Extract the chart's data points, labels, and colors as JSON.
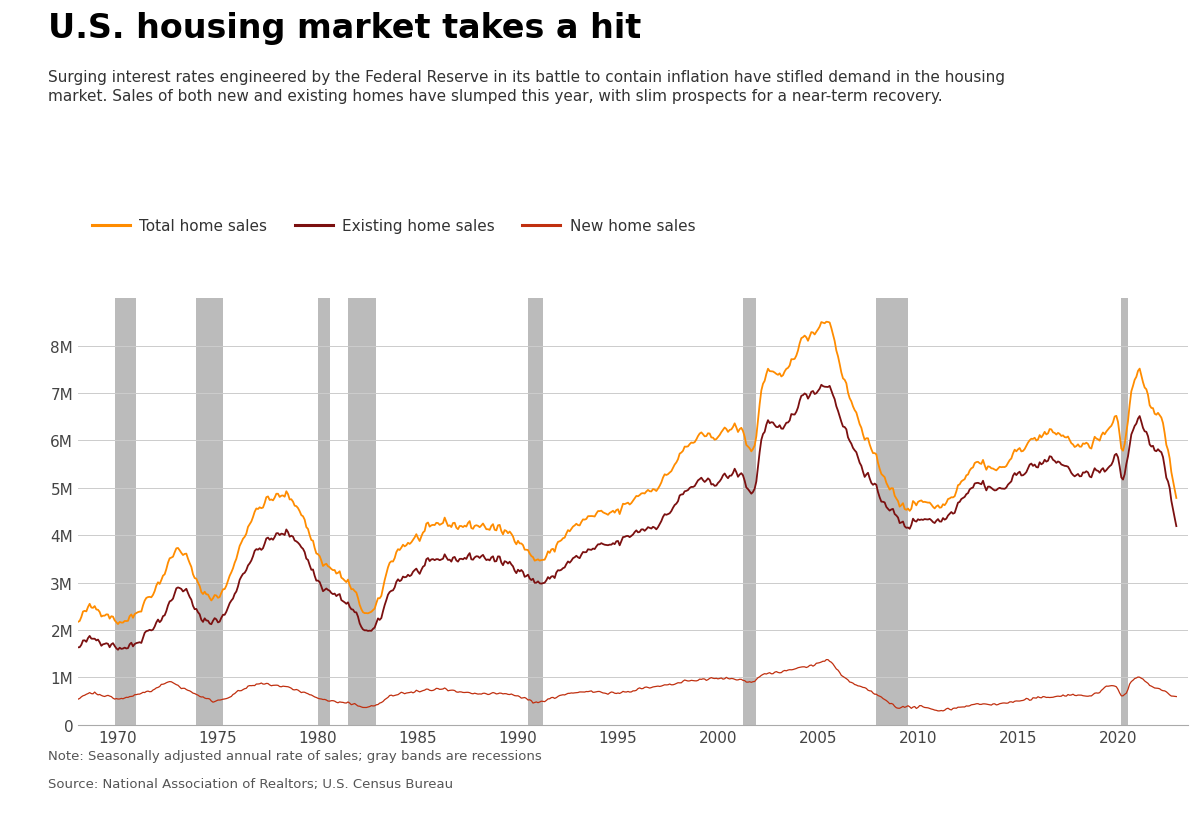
{
  "title": "U.S. housing market takes a hit",
  "subtitle": "Surging interest rates engineered by the Federal Reserve in its battle to contain inflation have stifled demand in the housing\nmarket. Sales of both new and existing homes have slumped this year, with slim prospects for a near-term recovery.",
  "note": "Note: Seasonally adjusted annual rate of sales; gray bands are recessions",
  "source": "Source: National Association of Realtors; U.S. Census Bureau",
  "legend": [
    "Total home sales",
    "Existing home sales",
    "New home sales"
  ],
  "colors": {
    "total": "#FF8C00",
    "existing": "#7B1010",
    "new": "#C03010"
  },
  "recession_bands": [
    [
      1969.83,
      1970.92
    ],
    [
      1973.92,
      1975.25
    ],
    [
      1980.0,
      1980.58
    ],
    [
      1981.5,
      1982.92
    ],
    [
      1990.5,
      1991.25
    ],
    [
      2001.25,
      2001.92
    ],
    [
      2007.92,
      2009.5
    ],
    [
      2020.17,
      2020.5
    ]
  ],
  "ylim": [
    0,
    9000000
  ],
  "yticks": [
    0,
    1000000,
    2000000,
    3000000,
    4000000,
    5000000,
    6000000,
    7000000,
    8000000
  ],
  "ytick_labels": [
    "0",
    "1M",
    "2M",
    "3M",
    "4M",
    "5M",
    "6M",
    "7M",
    "8M"
  ],
  "xlim": [
    1968.0,
    2023.5
  ],
  "xticks": [
    1970,
    1975,
    1980,
    1985,
    1990,
    1995,
    2000,
    2005,
    2010,
    2015,
    2020
  ],
  "background_color": "#FFFFFF",
  "grid_color": "#CCCCCC",
  "recession_color": "#BBBBBB"
}
